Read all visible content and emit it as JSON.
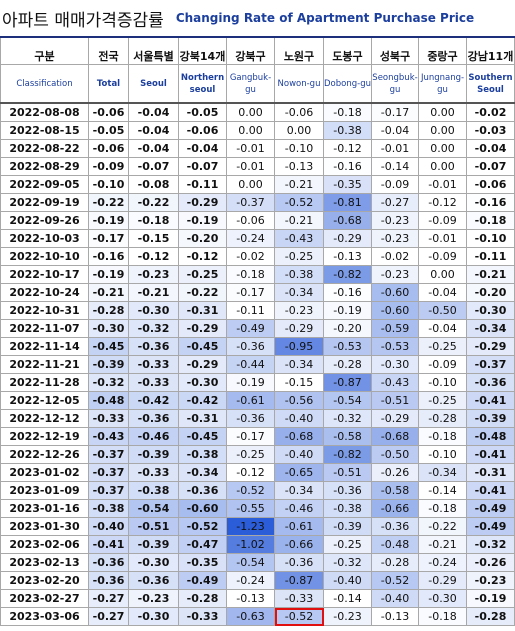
{
  "header": {
    "title_ko": "아파트 매매가격증감률",
    "title_en": "Changing Rate of Apartment Purchase Price"
  },
  "table": {
    "columns": [
      {
        "ko": "구분",
        "en": "Classification"
      },
      {
        "ko": "전국",
        "en": "Total"
      },
      {
        "ko": "서울특별",
        "en": "Seoul"
      },
      {
        "ko": "강북14개",
        "en": "Northern seoul"
      },
      {
        "ko": "강북구",
        "en": "Gangbuk-gu"
      },
      {
        "ko": "노원구",
        "en": "Nowon-gu"
      },
      {
        "ko": "도봉구",
        "en": "Dobong-gu"
      },
      {
        "ko": "성북구",
        "en": "Seongbuk-gu"
      },
      {
        "ko": "중랑구",
        "en": "Jungnang-gu"
      },
      {
        "ko": "강남11개",
        "en": "Southern Seoul"
      }
    ],
    "rows": [
      [
        "2022-08-08",
        "-0.06",
        "-0.04",
        "-0.05",
        "0.00",
        "-0.06",
        "-0.18",
        "-0.17",
        "0.00",
        "-0.02"
      ],
      [
        "2022-08-15",
        "-0.05",
        "-0.04",
        "-0.06",
        "0.00",
        "0.00",
        "-0.38",
        "-0.04",
        "0.00",
        "-0.03"
      ],
      [
        "2022-08-22",
        "-0.06",
        "-0.04",
        "-0.04",
        "-0.01",
        "-0.10",
        "-0.12",
        "-0.01",
        "0.00",
        "-0.04"
      ],
      [
        "2022-08-29",
        "-0.09",
        "-0.07",
        "-0.07",
        "-0.01",
        "-0.13",
        "-0.16",
        "-0.14",
        "0.00",
        "-0.07"
      ],
      [
        "2022-09-05",
        "-0.10",
        "-0.08",
        "-0.11",
        "0.00",
        "-0.21",
        "-0.35",
        "-0.09",
        "-0.01",
        "-0.06"
      ],
      [
        "2022-09-19",
        "-0.22",
        "-0.22",
        "-0.29",
        "-0.37",
        "-0.52",
        "-0.81",
        "-0.27",
        "-0.12",
        "-0.16"
      ],
      [
        "2022-09-26",
        "-0.19",
        "-0.18",
        "-0.19",
        "-0.06",
        "-0.21",
        "-0.68",
        "-0.23",
        "-0.09",
        "-0.18"
      ],
      [
        "2022-10-03",
        "-0.17",
        "-0.15",
        "-0.20",
        "-0.24",
        "-0.43",
        "-0.29",
        "-0.23",
        "-0.01",
        "-0.10"
      ],
      [
        "2022-10-10",
        "-0.16",
        "-0.12",
        "-0.12",
        "-0.02",
        "-0.25",
        "-0.13",
        "-0.02",
        "-0.09",
        "-0.11"
      ],
      [
        "2022-10-17",
        "-0.19",
        "-0.23",
        "-0.25",
        "-0.18",
        "-0.38",
        "-0.82",
        "-0.23",
        "0.00",
        "-0.21"
      ],
      [
        "2022-10-24",
        "-0.21",
        "-0.21",
        "-0.22",
        "-0.17",
        "-0.34",
        "-0.16",
        "-0.60",
        "-0.04",
        "-0.20"
      ],
      [
        "2022-10-31",
        "-0.28",
        "-0.30",
        "-0.31",
        "-0.11",
        "-0.23",
        "-0.19",
        "-0.60",
        "-0.50",
        "-0.30"
      ],
      [
        "2022-11-07",
        "-0.30",
        "-0.32",
        "-0.29",
        "-0.49",
        "-0.29",
        "-0.20",
        "-0.59",
        "-0.04",
        "-0.34"
      ],
      [
        "2022-11-14",
        "-0.45",
        "-0.36",
        "-0.45",
        "-0.36",
        "-0.95",
        "-0.53",
        "-0.53",
        "-0.25",
        "-0.29"
      ],
      [
        "2022-11-21",
        "-0.39",
        "-0.33",
        "-0.29",
        "-0.44",
        "-0.34",
        "-0.28",
        "-0.30",
        "-0.09",
        "-0.37"
      ],
      [
        "2022-11-28",
        "-0.32",
        "-0.33",
        "-0.30",
        "-0.19",
        "-0.15",
        "-0.87",
        "-0.43",
        "-0.10",
        "-0.36"
      ],
      [
        "2022-12-05",
        "-0.48",
        "-0.42",
        "-0.42",
        "-0.61",
        "-0.56",
        "-0.54",
        "-0.51",
        "-0.25",
        "-0.41"
      ],
      [
        "2022-12-12",
        "-0.33",
        "-0.36",
        "-0.31",
        "-0.36",
        "-0.40",
        "-0.32",
        "-0.29",
        "-0.28",
        "-0.39"
      ],
      [
        "2022-12-19",
        "-0.43",
        "-0.46",
        "-0.45",
        "-0.17",
        "-0.68",
        "-0.58",
        "-0.68",
        "-0.18",
        "-0.48"
      ],
      [
        "2022-12-26",
        "-0.37",
        "-0.39",
        "-0.38",
        "-0.25",
        "-0.40",
        "-0.82",
        "-0.50",
        "-0.10",
        "-0.41"
      ],
      [
        "2023-01-02",
        "-0.37",
        "-0.33",
        "-0.34",
        "-0.12",
        "-0.65",
        "-0.51",
        "-0.26",
        "-0.34",
        "-0.31"
      ],
      [
        "2023-01-09",
        "-0.37",
        "-0.38",
        "-0.36",
        "-0.52",
        "-0.34",
        "-0.36",
        "-0.58",
        "-0.14",
        "-0.41"
      ],
      [
        "2023-01-16",
        "-0.38",
        "-0.54",
        "-0.60",
        "-0.55",
        "-0.46",
        "-0.38",
        "-0.66",
        "-0.18",
        "-0.49"
      ],
      [
        "2023-01-30",
        "-0.40",
        "-0.51",
        "-0.52",
        "-1.23",
        "-0.61",
        "-0.39",
        "-0.36",
        "-0.22",
        "-0.49"
      ],
      [
        "2023-02-06",
        "-0.41",
        "-0.39",
        "-0.47",
        "-1.02",
        "-0.66",
        "-0.25",
        "-0.48",
        "-0.21",
        "-0.32"
      ],
      [
        "2023-02-13",
        "-0.36",
        "-0.30",
        "-0.35",
        "-0.54",
        "-0.36",
        "-0.32",
        "-0.28",
        "-0.24",
        "-0.26"
      ],
      [
        "2023-02-20",
        "-0.36",
        "-0.36",
        "-0.49",
        "-0.24",
        "-0.87",
        "-0.40",
        "-0.52",
        "-0.29",
        "-0.23"
      ],
      [
        "2023-02-27",
        "-0.27",
        "-0.23",
        "-0.28",
        "-0.13",
        "-0.33",
        "-0.14",
        "-0.40",
        "-0.30",
        "-0.19"
      ],
      [
        "2023-03-06",
        "-0.27",
        "-0.30",
        "-0.33",
        "-0.63",
        "-0.52",
        "-0.23",
        "-0.13",
        "-0.18",
        "-0.28"
      ]
    ]
  }
}
